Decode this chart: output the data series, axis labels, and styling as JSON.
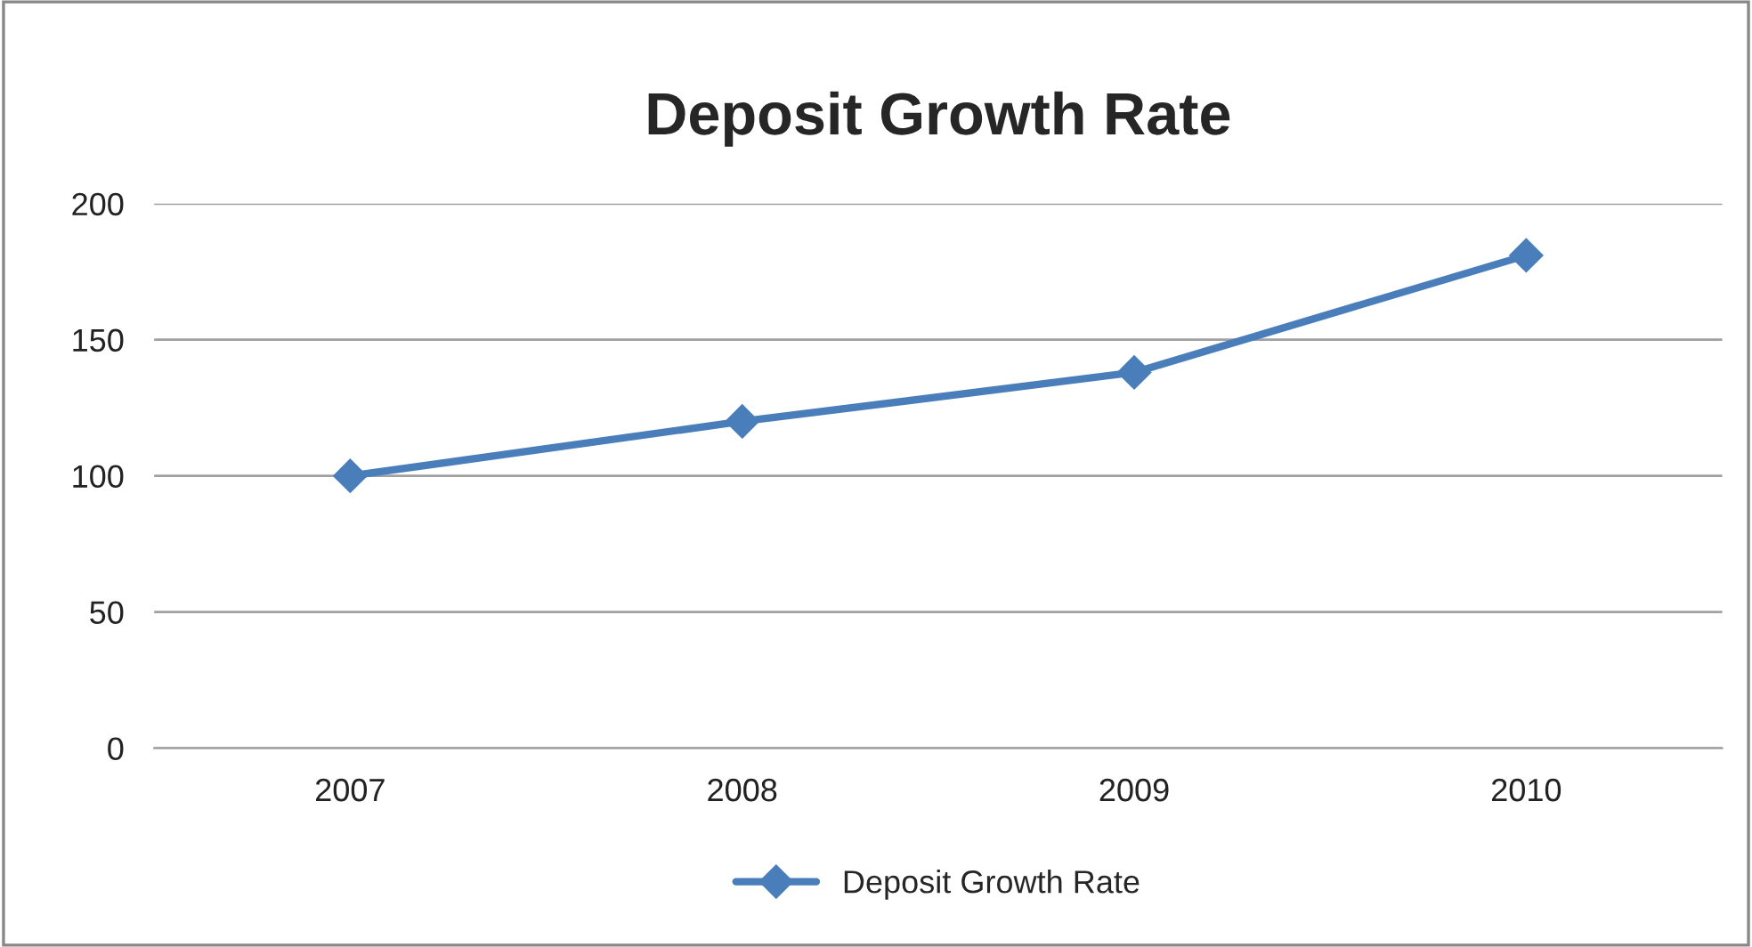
{
  "chart_data": {
    "type": "line",
    "title": "Deposit Growth Rate",
    "categories": [
      "2007",
      "2008",
      "2009",
      "2010"
    ],
    "series": [
      {
        "name": "Deposit Growth Rate",
        "color": "#4a7ebb",
        "values": [
          100,
          120,
          138,
          181
        ]
      }
    ],
    "ylim": [
      0,
      200
    ],
    "yticks": [
      0,
      50,
      100,
      150,
      200
    ],
    "grid": "y",
    "legend": "bottom",
    "marker": "diamond",
    "line_style": "solid"
  }
}
